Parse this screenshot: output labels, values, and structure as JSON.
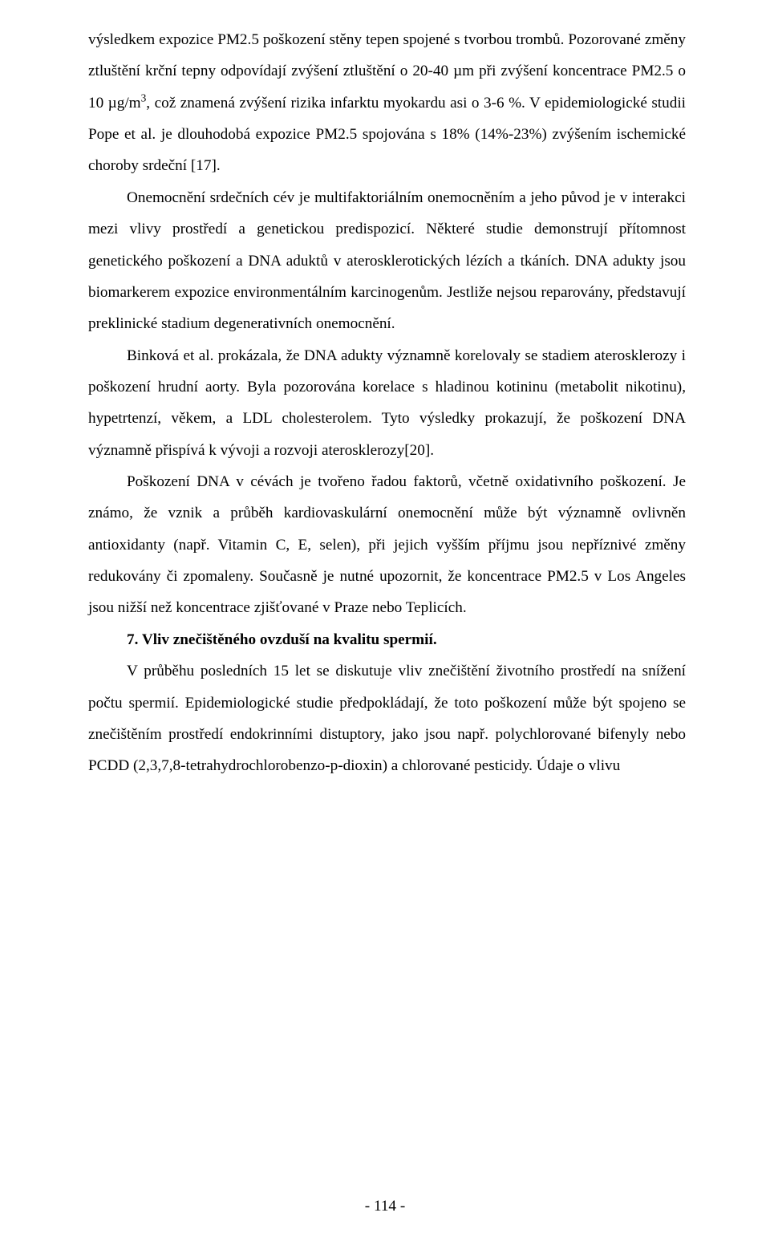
{
  "paragraphs": {
    "p1_a": "výsledkem expozice PM2.5 poškození stěny tepen spojené s tvorbou trombů. Pozorované změny ztluštění krční tepny odpovídají zvýšení ztluštění o 20-40 µm při zvýšení koncentrace PM2.5 o 10 µg/m",
    "p1_sup": "3",
    "p1_b": ", což znamená zvýšení rizika infarktu myokardu asi o 3-6 %. V epidemiologické studii Pope et al. je dlouhodobá expozice PM2.5 spojována s 18% (14%-23%) zvýšením ischemické choroby srdeční [17].",
    "p2": "Onemocnění srdečních cév je multifaktoriálním onemocněním a jeho původ je v interakci mezi vlivy prostředí a genetickou predispozicí. Některé studie demonstrují přítomnost genetického poškození a DNA aduktů v aterosklerotických lézích a tkáních. DNA adukty jsou biomarkerem expozice environmentálním karcinogenům. Jestliže nejsou reparovány, představují preklinické stadium degenerativních onemocnění.",
    "p3": "Binková et al. prokázala, že DNA adukty významně korelovaly se stadiem aterosklerozy i poškození hrudní aorty. Byla pozorována korelace s hladinou kotininu (metabolit nikotinu), hypetrtenzí, věkem, a LDL cholesterolem. Tyto výsledky prokazují, že poškození DNA významně přispívá k vývoji a rozvoji aterosklerozy[20].",
    "p4": "Poškození DNA v cévách je tvořeno řadou faktorů, včetně oxidativního poškození. Je známo, že vznik a průběh kardiovaskulární onemocnění může být významně ovlivněn antioxidanty (např. Vitamin C, E, selen), při jejich vyšším příjmu jsou nepříznivé změny redukovány či zpomaleny. Současně je nutné upozornit, že koncentrace PM2.5 v Los Angeles jsou nižší než koncentrace zjišťované v Praze nebo Teplicích."
  },
  "heading": "7. Vliv znečištěného ovzduší na kvalitu spermií.",
  "after_heading": {
    "p5": "V průběhu posledních 15 let se diskutuje vliv znečištění životního prostředí na snížení počtu spermií. Epidemiologické studie předpokládají, že toto poškození může být spojeno se znečištěním prostředí endokrinními distuptory, jako jsou např. polychlorované bifenyly nebo PCDD (2,3,7,8-tetrahydrochlorobenzo-p-dioxin) a chlorované pesticidy. Údaje o vlivu"
  },
  "page_number": "- 114 -"
}
